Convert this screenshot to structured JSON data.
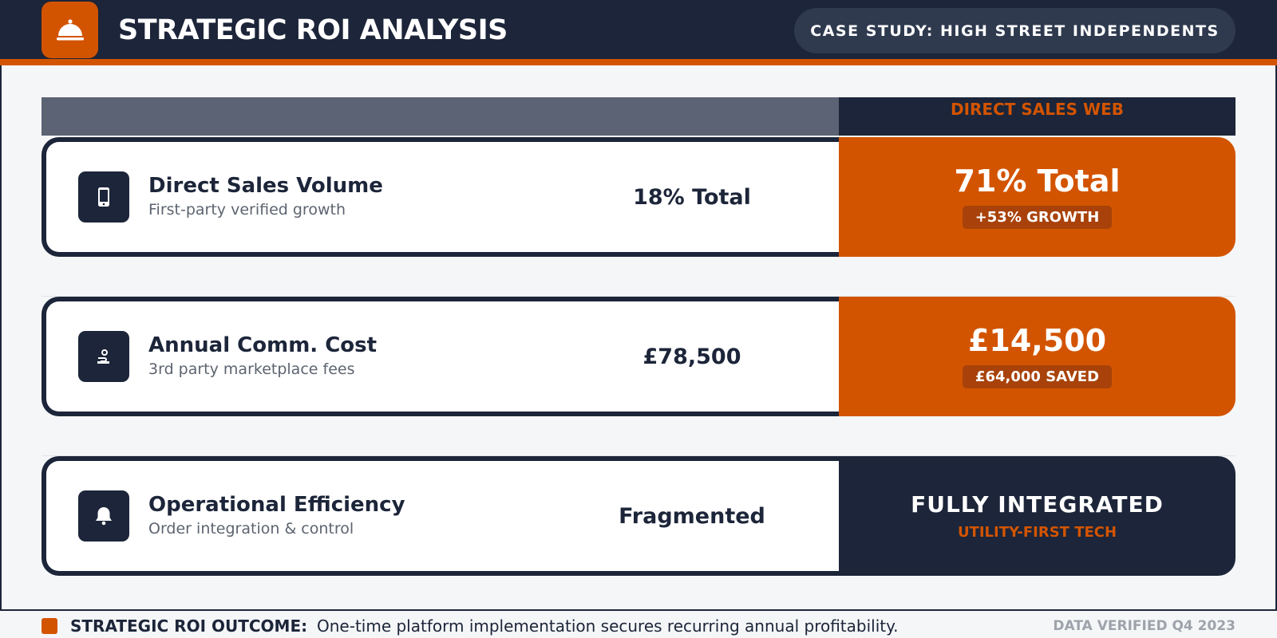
{
  "header": {
    "title": "STRATEGIC ROI ANALYSIS",
    "logo_icon": "cloche-icon",
    "case_study": "CASE STUDY: HIGH STREET INDEPENDENTS"
  },
  "table": {
    "column_header_right": "DIRECT SALES WEB",
    "rows": [
      {
        "icon": "smartphone-icon",
        "title": "Direct Sales Volume",
        "subtitle": "First-party verified growth",
        "current_value": "18% Total",
        "new_value": "71% Total",
        "badge": "+53% GROWTH"
      },
      {
        "icon": "coins-hand-icon",
        "title": "Annual Comm. Cost",
        "subtitle": "3rd party marketplace fees",
        "current_value": "£78,500",
        "new_value": "£14,500",
        "badge": "£64,000 SAVED"
      },
      {
        "icon": "bell-icon",
        "title": "Operational Efficiency",
        "subtitle": "Order integration & control",
        "current_value": "Fragmented",
        "new_value": "FULLY INTEGRATED",
        "badge": "UTILITY-FIRST TECH"
      }
    ]
  },
  "footer": {
    "label": "STRATEGIC ROI OUTCOME:",
    "text": "One-time platform implementation secures recurring annual profitability.",
    "verified": "DATA VERIFIED Q4 2023"
  },
  "colors": {
    "navy": "#1c2539",
    "accent": "#d35400",
    "slate": "#5b6374"
  }
}
